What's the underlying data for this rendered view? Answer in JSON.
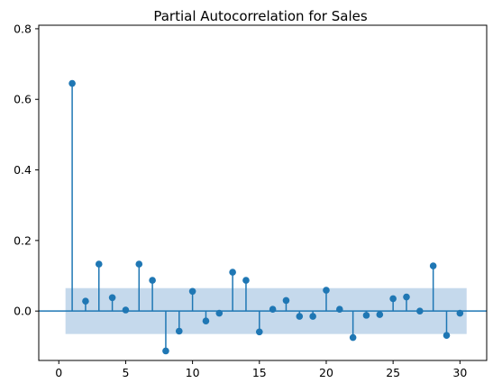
{
  "chart_data": {
    "type": "stem",
    "title": "Partial Autocorrelation for Sales",
    "xlabel": "",
    "ylabel": "",
    "xlim": [
      -1.5,
      32
    ],
    "ylim": [
      -0.14,
      0.81
    ],
    "xticks": [
      0,
      5,
      10,
      15,
      20,
      25,
      30
    ],
    "yticks": [
      0.0,
      0.2,
      0.4,
      0.6,
      0.8
    ],
    "ytick_labels": [
      "0.0",
      "0.2",
      "0.4",
      "0.6",
      "0.8"
    ],
    "confidence_band": {
      "lower": -0.065,
      "upper": 0.065,
      "x_range": [
        0.5,
        30.5
      ]
    },
    "baseline": 0,
    "lags": [
      1,
      2,
      3,
      4,
      5,
      6,
      7,
      8,
      9,
      10,
      11,
      12,
      13,
      14,
      15,
      16,
      17,
      18,
      19,
      20,
      21,
      22,
      23,
      24,
      25,
      26,
      27,
      28,
      29,
      30
    ],
    "values": [
      0.645,
      0.028,
      0.133,
      0.038,
      0.003,
      0.133,
      0.087,
      -0.113,
      -0.057,
      0.056,
      -0.028,
      -0.006,
      0.11,
      0.087,
      -0.059,
      0.005,
      0.03,
      -0.015,
      -0.015,
      0.059,
      0.005,
      -0.075,
      -0.012,
      -0.01,
      0.035,
      0.04,
      0.0,
      0.128,
      -0.069,
      -0.006
    ],
    "colors": {
      "stem": "#1f77b4",
      "band": "#c5d9ec",
      "baseline": "#1f77b4"
    },
    "grid": false
  }
}
